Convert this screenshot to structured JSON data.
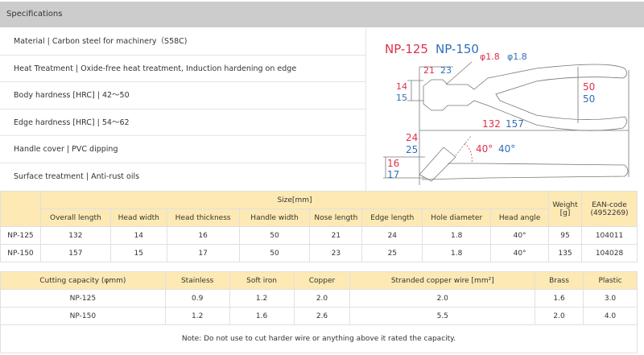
{
  "header": {
    "title": "Specifications"
  },
  "specs": [
    "Material | Carbon steel for machinery（S58C)",
    "Heat Treatment | Oxide-free heat treatment, Induction hardening on edge",
    "Body hardness [HRC] | 42～50",
    "Edge hardness [HRC] | 54～62",
    "Handle cover | PVC dipping",
    "Surface treatment | Anti-rust oils"
  ],
  "diagram": {
    "model_a": "NP-125",
    "model_b": "NP-150",
    "hole_a": "φ1.8",
    "hole_b": "φ1.8",
    "nose_a": "21",
    "nose_b": "23",
    "width_a": "14",
    "width_b": "15",
    "handle_a": "50",
    "handle_b": "50",
    "length_a": "132",
    "length_b": "157",
    "edge_a": "24",
    "edge_b": "25",
    "angle_a": "40°",
    "angle_b": "40°",
    "thick_a": "16",
    "thick_b": "17",
    "color_a": "#e0304a",
    "color_b": "#2f6fb8"
  },
  "size_table": {
    "group": "Size[mm]",
    "weight": "Weight [g]",
    "ean": "EAN-code (4952269)",
    "columns": [
      "Overall length",
      "Head width",
      "Head thickness",
      "Handle width",
      "Nose length",
      "Edge length",
      "Hole diameter",
      "Head angle"
    ],
    "rows": [
      [
        "NP-125",
        "132",
        "14",
        "16",
        "50",
        "21",
        "24",
        "1.8",
        "40°",
        "95",
        "104011"
      ],
      [
        "NP-150",
        "157",
        "15",
        "17",
        "50",
        "23",
        "25",
        "1.8",
        "40°",
        "135",
        "104028"
      ]
    ]
  },
  "cut_table": {
    "columns": [
      "Cutting capacity (φmm)",
      "Stainless",
      "Soft iron",
      "Copper",
      "Stranded copper wire [mm²]",
      "Brass",
      "Plastic"
    ],
    "rows": [
      [
        "NP-125",
        "0.9",
        "1.2",
        "2.0",
        "2.0",
        "1.6",
        "3.0"
      ],
      [
        "NP-150",
        "1.2",
        "1.6",
        "2.6",
        "5.5",
        "2.0",
        "4.0"
      ]
    ]
  },
  "note": "Note: Do not use to cut harder wire or anything above it rated the capacity.",
  "colors": {
    "header_bg": "#cccccc",
    "table_header_bg": "#fde9b4"
  }
}
